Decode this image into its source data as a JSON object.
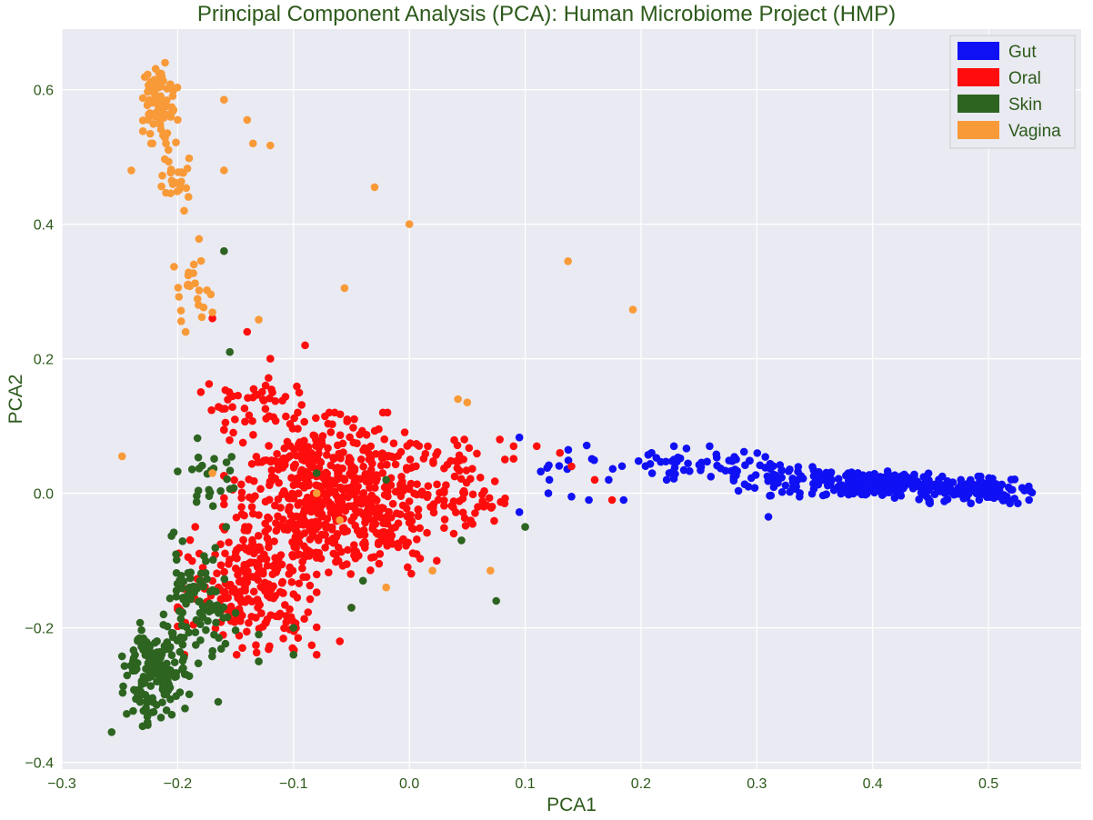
{
  "chart_data": {
    "type": "scatter",
    "title": "Principal Component Analysis (PCA): Human Microbiome Project (HMP)",
    "xlabel": "PCA1",
    "ylabel": "PCA2",
    "xlim": [
      -0.3,
      0.58
    ],
    "ylim": [
      -0.41,
      0.69
    ],
    "xticks": [
      -0.3,
      -0.2,
      -0.1,
      0.0,
      0.1,
      0.2,
      0.3,
      0.4,
      0.5
    ],
    "xtick_labels": [
      "−0.3",
      "−0.2",
      "−0.1",
      "0.0",
      "0.1",
      "0.2",
      "0.3",
      "0.4",
      "0.5"
    ],
    "yticks": [
      -0.4,
      -0.2,
      0.0,
      0.2,
      0.4,
      0.6
    ],
    "ytick_labels": [
      "−0.4",
      "−0.2",
      "0.0",
      "0.2",
      "0.4",
      "0.6"
    ],
    "grid": true,
    "legend_position": "top-right",
    "background": "#eaeaf2",
    "series": [
      {
        "name": "Gut",
        "color": "#1010f5",
        "regions": [
          {
            "x": [
              0.1,
              0.19
            ],
            "y": [
              0.02,
              0.08
            ],
            "n": 14
          },
          {
            "x": [
              0.19,
              0.32
            ],
            "y": [
              0.02,
              0.07
            ],
            "n": 55
          },
          {
            "x": [
              0.28,
              0.38
            ],
            "y": [
              -0.01,
              0.05
            ],
            "n": 70
          },
          {
            "x": [
              0.36,
              0.46
            ],
            "y": [
              -0.01,
              0.035
            ],
            "n": 170
          },
          {
            "x": [
              0.44,
              0.54
            ],
            "y": [
              -0.015,
              0.025
            ],
            "n": 150
          }
        ],
        "points": [
          [
            0.095,
            0.083
          ],
          [
            0.095,
            -0.028
          ],
          [
            0.12,
            0.0
          ],
          [
            0.14,
            -0.005
          ],
          [
            0.155,
            -0.01
          ],
          [
            0.31,
            -0.035
          ],
          [
            0.535,
            -0.01
          ],
          [
            0.185,
            -0.01
          ]
        ]
      },
      {
        "name": "Oral",
        "color": "#ff0d0d",
        "regions": [
          {
            "x": [
              -0.16,
              0.03
            ],
            "y": [
              -0.12,
              0.12
            ],
            "n": 650
          },
          {
            "x": [
              -0.2,
              -0.08
            ],
            "y": [
              -0.24,
              -0.05
            ],
            "n": 220
          },
          {
            "x": [
              0.0,
              0.09
            ],
            "y": [
              -0.06,
              0.08
            ],
            "n": 70
          },
          {
            "x": [
              -0.18,
              -0.08
            ],
            "y": [
              0.1,
              0.18
            ],
            "n": 40
          }
        ],
        "points": [
          [
            -0.12,
            0.2
          ],
          [
            -0.14,
            0.24
          ],
          [
            -0.17,
            0.26
          ],
          [
            -0.09,
            0.22
          ],
          [
            0.09,
            0.07
          ],
          [
            0.11,
            0.07
          ],
          [
            0.13,
            0.06
          ],
          [
            0.14,
            0.04
          ],
          [
            0.16,
            0.02
          ],
          [
            0.175,
            -0.01
          ],
          [
            -0.1,
            -0.2
          ],
          [
            -0.06,
            -0.22
          ],
          [
            -0.1,
            -0.15
          ],
          [
            -0.05,
            -0.17
          ]
        ]
      },
      {
        "name": "Skin",
        "color": "#2c6420",
        "regions": [
          {
            "x": [
              -0.25,
              -0.19
            ],
            "y": [
              -0.35,
              -0.18
            ],
            "n": 160
          },
          {
            "x": [
              -0.21,
              -0.15
            ],
            "y": [
              -0.26,
              -0.05
            ],
            "n": 90
          },
          {
            "x": [
              -0.2,
              -0.14
            ],
            "y": [
              -0.05,
              0.09
            ],
            "n": 25
          }
        ],
        "points": [
          [
            -0.16,
            0.36
          ],
          [
            -0.155,
            0.21
          ],
          [
            -0.257,
            -0.355
          ],
          [
            -0.165,
            -0.31
          ],
          [
            -0.13,
            -0.25
          ],
          [
            -0.1,
            -0.2
          ],
          [
            -0.05,
            -0.17
          ],
          [
            0.075,
            -0.16
          ],
          [
            0.1,
            -0.05
          ],
          [
            0.045,
            -0.07
          ],
          [
            -0.1,
            -0.24
          ],
          [
            -0.13,
            -0.21
          ],
          [
            -0.02,
            0.02
          ],
          [
            -0.08,
            0.03
          ],
          [
            -0.04,
            -0.13
          ]
        ]
      },
      {
        "name": "Vagina",
        "color": "#f89a38",
        "regions": [
          {
            "x": [
              -0.23,
              -0.2
            ],
            "y": [
              0.52,
              0.64
            ],
            "n": 80
          },
          {
            "x": [
              -0.215,
              -0.185
            ],
            "y": [
              0.42,
              0.54
            ],
            "n": 25
          },
          {
            "x": [
              -0.205,
              -0.17
            ],
            "y": [
              0.2,
              0.4
            ],
            "n": 25
          }
        ],
        "points": [
          [
            -0.16,
            0.585
          ],
          [
            -0.14,
            0.555
          ],
          [
            -0.135,
            0.52
          ],
          [
            -0.12,
            0.517
          ],
          [
            -0.03,
            0.455
          ],
          [
            0.0,
            0.4
          ],
          [
            0.137,
            0.345
          ],
          [
            0.193,
            0.273
          ],
          [
            -0.056,
            0.305
          ],
          [
            -0.13,
            0.258
          ],
          [
            -0.248,
            0.055
          ],
          [
            0.042,
            0.14
          ],
          [
            0.05,
            0.135
          ],
          [
            0.07,
            -0.115
          ],
          [
            0.02,
            -0.115
          ],
          [
            -0.02,
            -0.14
          ],
          [
            -0.08,
            0.0
          ],
          [
            -0.06,
            -0.04
          ],
          [
            -0.17,
            0.03
          ],
          [
            -0.24,
            0.48
          ],
          [
            -0.16,
            0.48
          ]
        ]
      }
    ]
  }
}
